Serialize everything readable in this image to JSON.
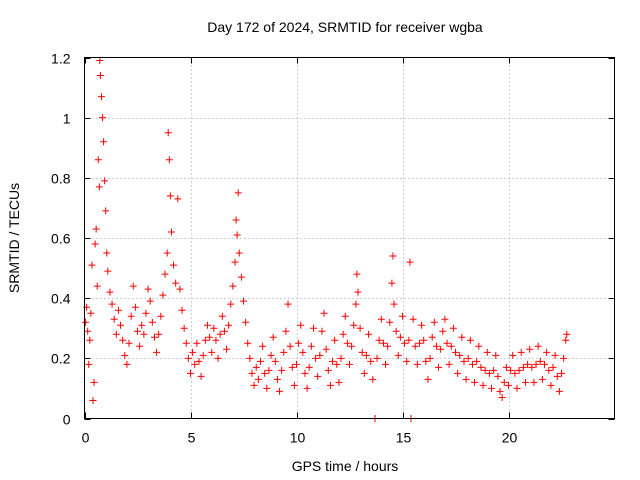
{
  "chart_data": {
    "type": "scatter",
    "title": "Day 172 of 2024, SRMTID for receiver wgba",
    "xlabel": "GPS time / hours",
    "ylabel": "SRMTID / TECUs",
    "xlim": [
      0,
      25
    ],
    "ylim": [
      0,
      1.2
    ],
    "x_ticks": [
      0,
      5,
      10,
      15,
      20
    ],
    "x_tick_labels": [
      "0",
      "5",
      "10",
      "15",
      "20"
    ],
    "y_ticks": [
      0,
      0.2,
      0.4,
      0.6,
      0.8,
      1.0,
      1.2
    ],
    "y_tick_labels": [
      "0",
      "0.2",
      "0.4",
      "0.6",
      "0.8",
      "1",
      "1.2"
    ],
    "grid": true,
    "marker": "+",
    "color": "#ff0000",
    "series": [
      {
        "name": "SRMTID",
        "points": [
          [
            0.05,
            0.32
          ],
          [
            0.1,
            0.37
          ],
          [
            0.15,
            0.29
          ],
          [
            0.2,
            0.18
          ],
          [
            0.25,
            0.26
          ],
          [
            0.3,
            0.35
          ],
          [
            0.35,
            0.51
          ],
          [
            0.4,
            0.06
          ],
          [
            0.45,
            0.12
          ],
          [
            0.5,
            0.58
          ],
          [
            0.55,
            0.63
          ],
          [
            0.6,
            0.44
          ],
          [
            0.65,
            0.86
          ],
          [
            0.7,
            0.77
          ],
          [
            0.72,
            1.19
          ],
          [
            0.75,
            1.14
          ],
          [
            0.8,
            1.07
          ],
          [
            0.85,
            1.0
          ],
          [
            0.9,
            0.92
          ],
          [
            0.95,
            0.79
          ],
          [
            1.0,
            0.69
          ],
          [
            1.05,
            0.55
          ],
          [
            1.1,
            0.49
          ],
          [
            1.2,
            0.42
          ],
          [
            1.3,
            0.38
          ],
          [
            1.4,
            0.33
          ],
          [
            1.5,
            0.28
          ],
          [
            1.6,
            0.36
          ],
          [
            1.7,
            0.31
          ],
          [
            1.8,
            0.26
          ],
          [
            1.9,
            0.21
          ],
          [
            2.0,
            0.18
          ],
          [
            2.1,
            0.25
          ],
          [
            2.2,
            0.34
          ],
          [
            2.3,
            0.44
          ],
          [
            2.4,
            0.37
          ],
          [
            2.5,
            0.29
          ],
          [
            2.6,
            0.24
          ],
          [
            2.7,
            0.31
          ],
          [
            2.8,
            0.28
          ],
          [
            2.9,
            0.35
          ],
          [
            3.0,
            0.43
          ],
          [
            3.1,
            0.39
          ],
          [
            3.2,
            0.32
          ],
          [
            3.3,
            0.27
          ],
          [
            3.4,
            0.22
          ],
          [
            3.5,
            0.28
          ],
          [
            3.6,
            0.34
          ],
          [
            3.7,
            0.41
          ],
          [
            3.8,
            0.48
          ],
          [
            3.9,
            0.55
          ],
          [
            3.95,
            0.95
          ],
          [
            4.0,
            0.86
          ],
          [
            4.05,
            0.74
          ],
          [
            4.1,
            0.62
          ],
          [
            4.2,
            0.51
          ],
          [
            4.3,
            0.45
          ],
          [
            4.4,
            0.73
          ],
          [
            4.5,
            0.43
          ],
          [
            4.6,
            0.36
          ],
          [
            4.7,
            0.3
          ],
          [
            4.8,
            0.25
          ],
          [
            4.9,
            0.2
          ],
          [
            5.0,
            0.15
          ],
          [
            5.1,
            0.22
          ],
          [
            5.2,
            0.18
          ],
          [
            5.3,
            0.25
          ],
          [
            5.4,
            0.19
          ],
          [
            5.5,
            0.14
          ],
          [
            5.6,
            0.21
          ],
          [
            5.7,
            0.26
          ],
          [
            5.8,
            0.31
          ],
          [
            5.9,
            0.27
          ],
          [
            6.0,
            0.22
          ],
          [
            6.1,
            0.3
          ],
          [
            6.2,
            0.26
          ],
          [
            6.3,
            0.2
          ],
          [
            6.4,
            0.28
          ],
          [
            6.5,
            0.34
          ],
          [
            6.6,
            0.29
          ],
          [
            6.7,
            0.23
          ],
          [
            6.8,
            0.31
          ],
          [
            6.9,
            0.38
          ],
          [
            7.0,
            0.44
          ],
          [
            7.1,
            0.52
          ],
          [
            7.15,
            0.66
          ],
          [
            7.2,
            0.61
          ],
          [
            7.25,
            0.75
          ],
          [
            7.3,
            0.55
          ],
          [
            7.4,
            0.47
          ],
          [
            7.5,
            0.39
          ],
          [
            7.6,
            0.32
          ],
          [
            7.7,
            0.25
          ],
          [
            7.8,
            0.2
          ],
          [
            7.9,
            0.15
          ],
          [
            8.0,
            0.11
          ],
          [
            8.1,
            0.17
          ],
          [
            8.2,
            0.13
          ],
          [
            8.3,
            0.19
          ],
          [
            8.4,
            0.24
          ],
          [
            8.5,
            0.15
          ],
          [
            8.6,
            0.1
          ],
          [
            8.7,
            0.16
          ],
          [
            8.8,
            0.21
          ],
          [
            8.9,
            0.27
          ],
          [
            9.0,
            0.19
          ],
          [
            9.1,
            0.13
          ],
          [
            9.2,
            0.09
          ],
          [
            9.3,
            0.16
          ],
          [
            9.4,
            0.22
          ],
          [
            9.5,
            0.29
          ],
          [
            9.6,
            0.38
          ],
          [
            9.7,
            0.24
          ],
          [
            9.8,
            0.17
          ],
          [
            9.9,
            0.11
          ],
          [
            10.0,
            0.18
          ],
          [
            10.1,
            0.25
          ],
          [
            10.2,
            0.31
          ],
          [
            10.3,
            0.22
          ],
          [
            10.4,
            0.15
          ],
          [
            10.5,
            0.1
          ],
          [
            10.6,
            0.17
          ],
          [
            10.7,
            0.24
          ],
          [
            10.8,
            0.3
          ],
          [
            10.9,
            0.2
          ],
          [
            11.0,
            0.14
          ],
          [
            11.1,
            0.21
          ],
          [
            11.2,
            0.29
          ],
          [
            11.3,
            0.35
          ],
          [
            11.4,
            0.23
          ],
          [
            11.5,
            0.16
          ],
          [
            11.6,
            0.11
          ],
          [
            11.7,
            0.19
          ],
          [
            11.8,
            0.26
          ],
          [
            11.9,
            0.18
          ],
          [
            12.0,
            0.12
          ],
          [
            12.1,
            0.2
          ],
          [
            12.2,
            0.28
          ],
          [
            12.3,
            0.34
          ],
          [
            12.4,
            0.25
          ],
          [
            12.5,
            0.18
          ],
          [
            12.6,
            0.24
          ],
          [
            12.7,
            0.31
          ],
          [
            12.8,
            0.38
          ],
          [
            12.85,
            0.48
          ],
          [
            12.9,
            0.42
          ],
          [
            13.0,
            0.3
          ],
          [
            13.1,
            0.22
          ],
          [
            13.2,
            0.15
          ],
          [
            13.3,
            0.21
          ],
          [
            13.4,
            0.28
          ],
          [
            13.5,
            0.19
          ],
          [
            13.6,
            0.13
          ],
          [
            13.7,
            0.0
          ],
          [
            13.8,
            0.2
          ],
          [
            13.9,
            0.26
          ],
          [
            14.0,
            0.33
          ],
          [
            14.1,
            0.25
          ],
          [
            14.2,
            0.18
          ],
          [
            14.3,
            0.24
          ],
          [
            14.4,
            0.32
          ],
          [
            14.5,
            0.45
          ],
          [
            14.55,
            0.54
          ],
          [
            14.6,
            0.38
          ],
          [
            14.7,
            0.29
          ],
          [
            14.8,
            0.21
          ],
          [
            14.9,
            0.27
          ],
          [
            15.0,
            0.34
          ],
          [
            15.1,
            0.25
          ],
          [
            15.2,
            0.19
          ],
          [
            15.3,
            0.26
          ],
          [
            15.35,
            0.52
          ],
          [
            15.4,
            0.0
          ],
          [
            15.5,
            0.33
          ],
          [
            15.6,
            0.24
          ],
          [
            15.7,
            0.18
          ],
          [
            15.8,
            0.25
          ],
          [
            15.9,
            0.31
          ],
          [
            16.0,
            0.26
          ],
          [
            16.1,
            0.19
          ],
          [
            16.2,
            0.13
          ],
          [
            16.3,
            0.2
          ],
          [
            16.4,
            0.27
          ],
          [
            16.5,
            0.32
          ],
          [
            16.6,
            0.24
          ],
          [
            16.7,
            0.17
          ],
          [
            16.8,
            0.23
          ],
          [
            16.9,
            0.29
          ],
          [
            17.0,
            0.33
          ],
          [
            17.1,
            0.25
          ],
          [
            17.2,
            0.18
          ],
          [
            17.3,
            0.24
          ],
          [
            17.4,
            0.3
          ],
          [
            17.5,
            0.22
          ],
          [
            17.6,
            0.15
          ],
          [
            17.7,
            0.21
          ],
          [
            17.8,
            0.27
          ],
          [
            17.9,
            0.19
          ],
          [
            18.0,
            0.13
          ],
          [
            18.1,
            0.2
          ],
          [
            18.2,
            0.26
          ],
          [
            18.3,
            0.18
          ],
          [
            18.4,
            0.12
          ],
          [
            18.5,
            0.19
          ],
          [
            18.6,
            0.24
          ],
          [
            18.7,
            0.17
          ],
          [
            18.8,
            0.11
          ],
          [
            18.9,
            0.16
          ],
          [
            19.0,
            0.22
          ],
          [
            19.1,
            0.15
          ],
          [
            19.2,
            0.1
          ],
          [
            19.3,
            0.16
          ],
          [
            19.4,
            0.21
          ],
          [
            19.5,
            0.14
          ],
          [
            19.6,
            0.09
          ],
          [
            19.7,
            0.07
          ],
          [
            19.8,
            0.12
          ],
          [
            19.9,
            0.17
          ],
          [
            20.0,
            0.11
          ],
          [
            20.1,
            0.16
          ],
          [
            20.2,
            0.21
          ],
          [
            20.3,
            0.15
          ],
          [
            20.4,
            0.1
          ],
          [
            20.5,
            0.16
          ],
          [
            20.6,
            0.22
          ],
          [
            20.7,
            0.17
          ],
          [
            20.8,
            0.12
          ],
          [
            20.9,
            0.18
          ],
          [
            21.0,
            0.23
          ],
          [
            21.1,
            0.17
          ],
          [
            21.2,
            0.12
          ],
          [
            21.3,
            0.18
          ],
          [
            21.4,
            0.24
          ],
          [
            21.5,
            0.19
          ],
          [
            21.6,
            0.13
          ],
          [
            21.7,
            0.18
          ],
          [
            21.8,
            0.22
          ],
          [
            21.9,
            0.16
          ],
          [
            22.0,
            0.11
          ],
          [
            22.1,
            0.17
          ],
          [
            22.2,
            0.21
          ],
          [
            22.3,
            0.14
          ],
          [
            22.4,
            0.09
          ],
          [
            22.5,
            0.15
          ],
          [
            22.6,
            0.2
          ],
          [
            22.7,
            0.26
          ],
          [
            22.75,
            0.28
          ]
        ]
      }
    ]
  }
}
